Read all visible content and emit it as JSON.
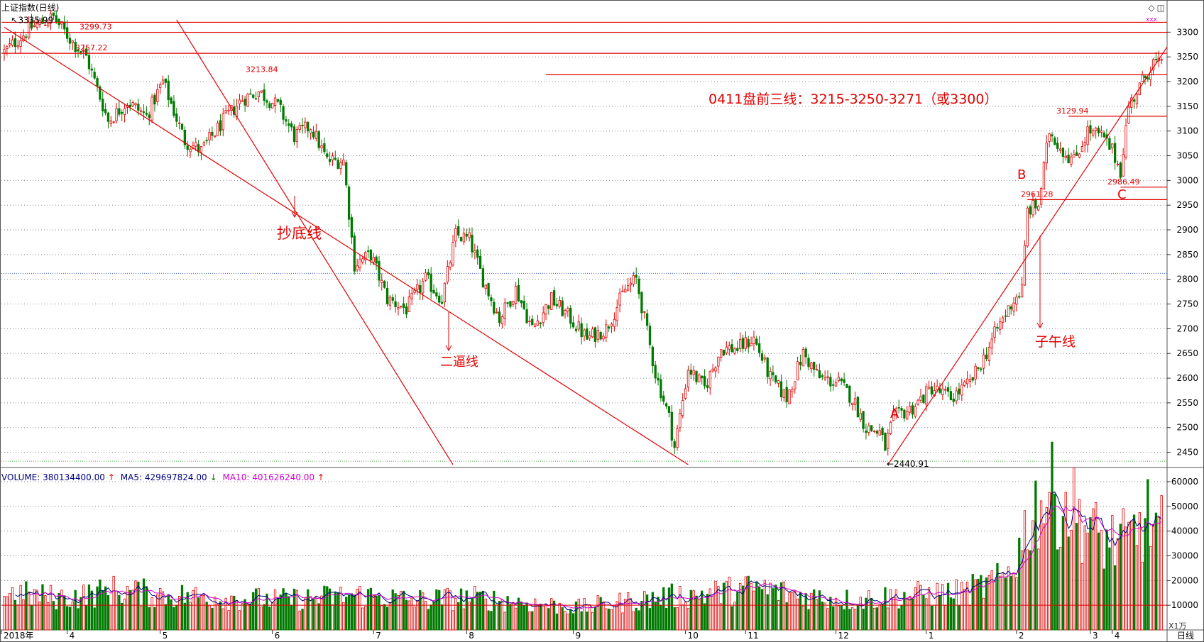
{
  "window": {
    "title": "上证指数(日线)",
    "period_label": "日线",
    "vol_unit": "X1万",
    "icons": [
      "diamond-icon",
      "panel-toggle-icon"
    ]
  },
  "colors": {
    "up": "#e00000",
    "down": "#007a00",
    "annotation": "#e00000",
    "ma5": "#000080",
    "ma10": "#d000d0",
    "grid": "#8a8a8a"
  },
  "volume_legend": {
    "volume": "VOLUME: 380134400.00",
    "ma5": "MA5: 429697824.00",
    "ma10": "MA10: 401626240.00"
  },
  "chart_data": {
    "type": "candlestick",
    "price_axis": {
      "ticks": [
        3300,
        3250,
        3200,
        3150,
        3100,
        3050,
        3000,
        2950,
        2900,
        2850,
        2800,
        2750,
        2700,
        2650,
        2600,
        2550,
        2500,
        2450
      ],
      "range": [
        2425,
        3345
      ]
    },
    "volume_axis": {
      "ticks": [
        60000,
        50000,
        40000,
        30000,
        20000,
        10000
      ],
      "range": [
        0,
        62000
      ],
      "unit": "X1万"
    },
    "x_axis": {
      "labels": [
        "2018年",
        "4",
        "5",
        "6",
        "7",
        "8",
        "9",
        "10",
        "11",
        "12",
        "1",
        "2",
        "3",
        "4"
      ]
    },
    "price_keypoints": [
      [
        0,
        3260
      ],
      [
        10,
        3310
      ],
      [
        18,
        3330
      ],
      [
        25,
        3280
      ],
      [
        30,
        3250
      ],
      [
        38,
        3120
      ],
      [
        45,
        3160
      ],
      [
        52,
        3130
      ],
      [
        58,
        3200
      ],
      [
        66,
        3080
      ],
      [
        72,
        3060
      ],
      [
        80,
        3120
      ],
      [
        87,
        3165
      ],
      [
        93,
        3180
      ],
      [
        100,
        3150
      ],
      [
        106,
        3090
      ],
      [
        112,
        3110
      ],
      [
        118,
        3040
      ],
      [
        124,
        3040
      ],
      [
        128,
        2830
      ],
      [
        134,
        2850
      ],
      [
        140,
        2760
      ],
      [
        147,
        2740
      ],
      [
        154,
        2800
      ],
      [
        160,
        2760
      ],
      [
        165,
        2890
      ],
      [
        170,
        2880
      ],
      [
        175,
        2800
      ],
      [
        181,
        2720
      ],
      [
        187,
        2780
      ],
      [
        193,
        2700
      ],
      [
        200,
        2760
      ],
      [
        207,
        2720
      ],
      [
        213,
        2680
      ],
      [
        220,
        2700
      ],
      [
        227,
        2780
      ],
      [
        231,
        2800
      ],
      [
        234,
        2720
      ],
      [
        238,
        2610
      ],
      [
        243,
        2520
      ],
      [
        245,
        2460
      ],
      [
        250,
        2620
      ],
      [
        256,
        2580
      ],
      [
        262,
        2660
      ],
      [
        268,
        2660
      ],
      [
        274,
        2680
      ],
      [
        280,
        2600
      ],
      [
        286,
        2560
      ],
      [
        292,
        2650
      ],
      [
        298,
        2600
      ],
      [
        305,
        2590
      ],
      [
        310,
        2560
      ],
      [
        315,
        2500
      ],
      [
        320,
        2490
      ],
      [
        322,
        2460
      ],
      [
        325,
        2520
      ],
      [
        332,
        2540
      ],
      [
        339,
        2580
      ],
      [
        346,
        2560
      ],
      [
        353,
        2590
      ],
      [
        358,
        2640
      ],
      [
        363,
        2700
      ],
      [
        368,
        2750
      ],
      [
        372,
        2780
      ],
      [
        374,
        2940
      ],
      [
        378,
        2950
      ],
      [
        382,
        3100
      ],
      [
        387,
        3060
      ],
      [
        391,
        3040
      ],
      [
        396,
        3100
      ],
      [
        401,
        3090
      ],
      [
        405,
        3060
      ],
      [
        408,
        3020
      ],
      [
        411,
        3150
      ],
      [
        416,
        3200
      ],
      [
        420,
        3240
      ],
      [
        423,
        3230
      ]
    ],
    "volume_keypoints": [
      [
        0,
        15000
      ],
      [
        20,
        13000
      ],
      [
        30,
        14000
      ],
      [
        40,
        16000
      ],
      [
        60,
        14000
      ],
      [
        80,
        13000
      ],
      [
        100,
        12000
      ],
      [
        130,
        14000
      ],
      [
        150,
        12000
      ],
      [
        170,
        13000
      ],
      [
        190,
        11000
      ],
      [
        210,
        9000
      ],
      [
        225,
        11000
      ],
      [
        240,
        13000
      ],
      [
        260,
        15000
      ],
      [
        275,
        17000
      ],
      [
        290,
        14000
      ],
      [
        310,
        12000
      ],
      [
        330,
        14000
      ],
      [
        350,
        15000
      ],
      [
        365,
        20000
      ],
      [
        372,
        35000
      ],
      [
        375,
        48000
      ],
      [
        382,
        55000
      ],
      [
        390,
        50000
      ],
      [
        400,
        37000
      ],
      [
        410,
        35000
      ],
      [
        418,
        45000
      ],
      [
        423,
        40000
      ]
    ],
    "n_candles": 424,
    "horizontal_levels": [
      {
        "value": 3320,
        "label": ""
      },
      {
        "value": 3299.73,
        "label": "3299.73"
      },
      {
        "value": 3257.22,
        "label": "3257.22"
      },
      {
        "value": 3213.84,
        "label": "3213.84"
      },
      {
        "value": 3129.94,
        "label": "3129.94"
      },
      {
        "value": 2986.49,
        "label": "2986.49"
      },
      {
        "value": 2961.28,
        "label": "2961.28"
      }
    ],
    "extremes": [
      {
        "value": 3335.99,
        "label": "3335.99",
        "arrow": "up",
        "index": 4
      },
      {
        "value": 2440.91,
        "label": "2440.91",
        "arrow": "left",
        "index": 322
      }
    ],
    "annotations": {
      "headline": "0411盘前三线：3215-3250-3271（或3300）",
      "chaodi": "抄底线",
      "erbi": "二逼线",
      "ziwu": "子午线",
      "point_a": "A",
      "point_b": "B",
      "point_c": "C"
    },
    "midline_value": 2812
  }
}
